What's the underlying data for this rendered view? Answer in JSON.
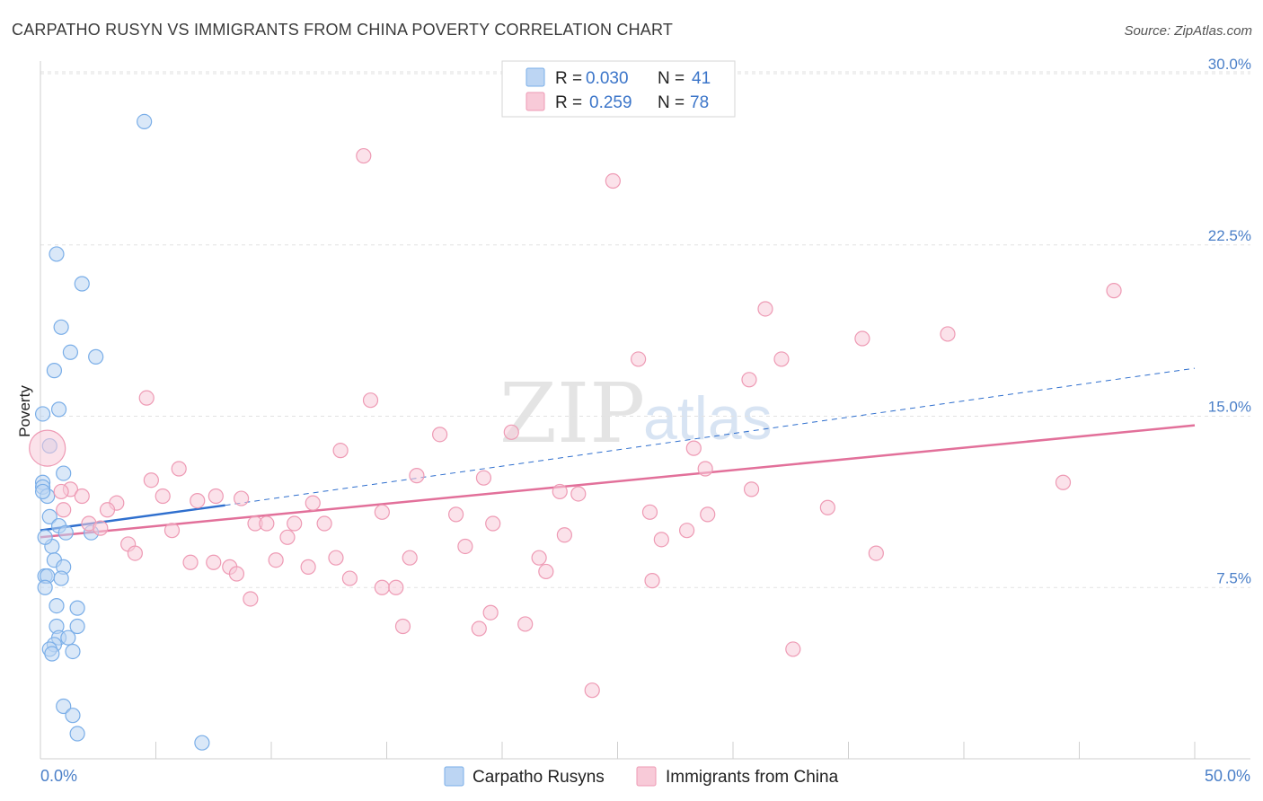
{
  "chart_data": {
    "type": "scatter",
    "title": "CARPATHO RUSYN VS IMMIGRANTS FROM CHINA POVERTY CORRELATION CHART",
    "source": "Source: ZipAtlas.com",
    "ylabel": "Poverty",
    "xlabel": "",
    "xlim": [
      0,
      50
    ],
    "ylim": [
      0,
      30
    ],
    "x_tick_labels": [
      {
        "value": 0,
        "label": "0.0%"
      },
      {
        "value": 50,
        "label": "50.0%"
      }
    ],
    "x_minor_ticks": [
      0,
      5,
      10,
      15,
      20,
      25,
      30,
      35,
      40,
      45,
      50
    ],
    "y_ticks": [
      {
        "value": 7.5,
        "label": "7.5%"
      },
      {
        "value": 15.0,
        "label": "15.0%"
      },
      {
        "value": 22.5,
        "label": "22.5%"
      },
      {
        "value": 30.0,
        "label": "30.0%"
      }
    ],
    "grid": true,
    "legend": {
      "placement": "top-center",
      "entries": [
        {
          "r_label": "R =",
          "r_value": "0.030",
          "n_label": "N =",
          "n_value": "41"
        },
        {
          "r_label": "R =",
          "r_value": "0.259",
          "n_label": "N =",
          "n_value": "78"
        }
      ]
    },
    "series": [
      {
        "name": "Carpatho Rusyns",
        "color": "#7aaee8",
        "fill": "#bcd5f3",
        "trend_color": "#2f6fce",
        "trend": {
          "x": [
            0,
            8
          ],
          "y": [
            10.0,
            11.1
          ]
        },
        "trend_ext": {
          "x": [
            8,
            50
          ],
          "y": [
            11.1,
            17.1
          ]
        },
        "points": [
          {
            "x": 4.5,
            "y": 27.9
          },
          {
            "x": 0.7,
            "y": 22.1
          },
          {
            "x": 1.8,
            "y": 20.8
          },
          {
            "x": 0.9,
            "y": 18.9
          },
          {
            "x": 1.3,
            "y": 17.8
          },
          {
            "x": 2.4,
            "y": 17.6
          },
          {
            "x": 0.6,
            "y": 17.0
          },
          {
            "x": 0.8,
            "y": 15.3
          },
          {
            "x": 0.1,
            "y": 15.1
          },
          {
            "x": 0.4,
            "y": 13.7
          },
          {
            "x": 1.0,
            "y": 12.5
          },
          {
            "x": 0.1,
            "y": 12.1
          },
          {
            "x": 0.1,
            "y": 11.9
          },
          {
            "x": 0.3,
            "y": 11.5
          },
          {
            "x": 0.4,
            "y": 10.6
          },
          {
            "x": 0.8,
            "y": 10.2
          },
          {
            "x": 1.1,
            "y": 9.9
          },
          {
            "x": 2.2,
            "y": 9.9
          },
          {
            "x": 0.5,
            "y": 9.3
          },
          {
            "x": 0.6,
            "y": 8.7
          },
          {
            "x": 1.0,
            "y": 8.4
          },
          {
            "x": 0.2,
            "y": 8.0
          },
          {
            "x": 0.3,
            "y": 8.0
          },
          {
            "x": 0.9,
            "y": 7.9
          },
          {
            "x": 0.2,
            "y": 7.5
          },
          {
            "x": 0.7,
            "y": 6.7
          },
          {
            "x": 1.6,
            "y": 6.6
          },
          {
            "x": 0.7,
            "y": 5.8
          },
          {
            "x": 1.6,
            "y": 5.8
          },
          {
            "x": 0.8,
            "y": 5.3
          },
          {
            "x": 1.2,
            "y": 5.3
          },
          {
            "x": 0.6,
            "y": 5.0
          },
          {
            "x": 0.4,
            "y": 4.8
          },
          {
            "x": 0.5,
            "y": 4.6
          },
          {
            "x": 1.4,
            "y": 4.7
          },
          {
            "x": 1.0,
            "y": 2.3
          },
          {
            "x": 1.4,
            "y": 1.9
          },
          {
            "x": 1.6,
            "y": 1.1
          },
          {
            "x": 7.0,
            "y": 0.7
          },
          {
            "x": 0.1,
            "y": 11.7
          },
          {
            "x": 0.2,
            "y": 9.7
          }
        ]
      },
      {
        "name": "Immigrants from China",
        "color": "#ee9ab4",
        "fill": "#f8cad8",
        "trend_color": "#e2709a",
        "trend": {
          "x": [
            0,
            50
          ],
          "y": [
            9.7,
            14.6
          ]
        },
        "points": [
          {
            "x": 14.0,
            "y": 26.4
          },
          {
            "x": 24.8,
            "y": 25.3
          },
          {
            "x": 46.5,
            "y": 20.5
          },
          {
            "x": 31.4,
            "y": 19.7
          },
          {
            "x": 39.3,
            "y": 18.6
          },
          {
            "x": 35.6,
            "y": 18.4
          },
          {
            "x": 25.9,
            "y": 17.5
          },
          {
            "x": 32.1,
            "y": 17.5
          },
          {
            "x": 30.7,
            "y": 16.6
          },
          {
            "x": 4.6,
            "y": 15.8
          },
          {
            "x": 14.3,
            "y": 15.7
          },
          {
            "x": 17.3,
            "y": 14.2
          },
          {
            "x": 20.4,
            "y": 14.3
          },
          {
            "x": 13.0,
            "y": 13.5
          },
          {
            "x": 28.3,
            "y": 13.6
          },
          {
            "x": 6.0,
            "y": 12.7
          },
          {
            "x": 28.8,
            "y": 12.7
          },
          {
            "x": 4.8,
            "y": 12.2
          },
          {
            "x": 16.3,
            "y": 12.4
          },
          {
            "x": 19.2,
            "y": 12.3
          },
          {
            "x": 44.3,
            "y": 12.1
          },
          {
            "x": 1.3,
            "y": 11.8
          },
          {
            "x": 0.9,
            "y": 11.7
          },
          {
            "x": 30.8,
            "y": 11.8
          },
          {
            "x": 22.5,
            "y": 11.7
          },
          {
            "x": 23.3,
            "y": 11.6
          },
          {
            "x": 1.8,
            "y": 11.5
          },
          {
            "x": 5.3,
            "y": 11.5
          },
          {
            "x": 7.6,
            "y": 11.5
          },
          {
            "x": 6.8,
            "y": 11.3
          },
          {
            "x": 8.7,
            "y": 11.4
          },
          {
            "x": 3.3,
            "y": 11.2
          },
          {
            "x": 11.8,
            "y": 11.2
          },
          {
            "x": 2.9,
            "y": 10.9
          },
          {
            "x": 1.0,
            "y": 10.9
          },
          {
            "x": 34.1,
            "y": 11.0
          },
          {
            "x": 26.4,
            "y": 10.8
          },
          {
            "x": 14.8,
            "y": 10.8
          },
          {
            "x": 18.0,
            "y": 10.7
          },
          {
            "x": 28.9,
            "y": 10.7
          },
          {
            "x": 2.1,
            "y": 10.3
          },
          {
            "x": 9.3,
            "y": 10.3
          },
          {
            "x": 9.8,
            "y": 10.3
          },
          {
            "x": 11.0,
            "y": 10.3
          },
          {
            "x": 12.3,
            "y": 10.3
          },
          {
            "x": 19.6,
            "y": 10.3
          },
          {
            "x": 2.6,
            "y": 10.1
          },
          {
            "x": 5.7,
            "y": 10.0
          },
          {
            "x": 28.0,
            "y": 10.0
          },
          {
            "x": 22.7,
            "y": 9.8
          },
          {
            "x": 10.7,
            "y": 9.7
          },
          {
            "x": 26.9,
            "y": 9.6
          },
          {
            "x": 3.8,
            "y": 9.4
          },
          {
            "x": 18.4,
            "y": 9.3
          },
          {
            "x": 4.1,
            "y": 9.0
          },
          {
            "x": 36.2,
            "y": 9.0
          },
          {
            "x": 6.5,
            "y": 8.6
          },
          {
            "x": 10.2,
            "y": 8.7
          },
          {
            "x": 7.5,
            "y": 8.6
          },
          {
            "x": 12.8,
            "y": 8.8
          },
          {
            "x": 16.0,
            "y": 8.8
          },
          {
            "x": 21.6,
            "y": 8.8
          },
          {
            "x": 8.2,
            "y": 8.4
          },
          {
            "x": 11.6,
            "y": 8.4
          },
          {
            "x": 21.9,
            "y": 8.2
          },
          {
            "x": 8.5,
            "y": 8.1
          },
          {
            "x": 13.4,
            "y": 7.9
          },
          {
            "x": 26.5,
            "y": 7.8
          },
          {
            "x": 14.8,
            "y": 7.5
          },
          {
            "x": 15.4,
            "y": 7.5
          },
          {
            "x": 9.1,
            "y": 7.0
          },
          {
            "x": 19.5,
            "y": 6.4
          },
          {
            "x": 15.7,
            "y": 5.8
          },
          {
            "x": 21.0,
            "y": 5.9
          },
          {
            "x": 19.0,
            "y": 5.7
          },
          {
            "x": 32.6,
            "y": 4.8
          },
          {
            "x": 23.9,
            "y": 3.0
          },
          {
            "x": 0.3,
            "y": 13.6
          }
        ]
      }
    ]
  },
  "watermark": {
    "zip": "ZIP",
    "atlas": "atlas"
  }
}
